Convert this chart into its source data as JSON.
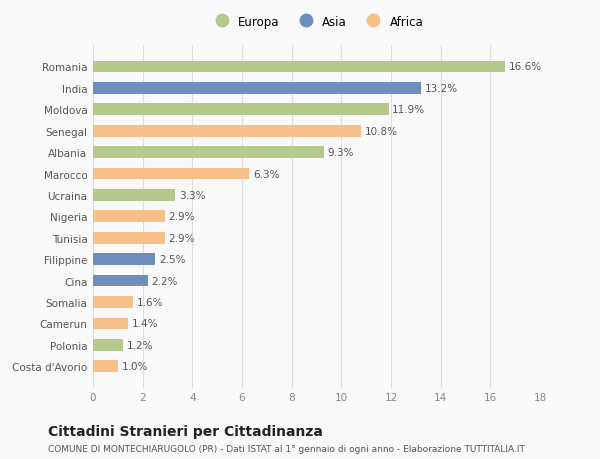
{
  "categories": [
    "Costa d'Avorio",
    "Polonia",
    "Camerun",
    "Somalia",
    "Cina",
    "Filippine",
    "Tunisia",
    "Nigeria",
    "Ucraina",
    "Marocco",
    "Albania",
    "Senegal",
    "Moldova",
    "India",
    "Romania"
  ],
  "values": [
    1.0,
    1.2,
    1.4,
    1.6,
    2.2,
    2.5,
    2.9,
    2.9,
    3.3,
    6.3,
    9.3,
    10.8,
    11.9,
    13.2,
    16.6
  ],
  "continents": [
    "Africa",
    "Europa",
    "Africa",
    "Africa",
    "Asia",
    "Asia",
    "Africa",
    "Africa",
    "Europa",
    "Africa",
    "Europa",
    "Africa",
    "Europa",
    "Asia",
    "Europa"
  ],
  "colors": {
    "Europa": "#b5c98e",
    "Asia": "#6e8fbe",
    "Africa": "#f5c08a"
  },
  "bar_height": 0.55,
  "xlim": [
    0,
    18
  ],
  "xticks": [
    0,
    2,
    4,
    6,
    8,
    10,
    12,
    14,
    16,
    18
  ],
  "title": "Cittadini Stranieri per Cittadinanza",
  "subtitle": "COMUNE DI MONTECHIARUGOLO (PR) - Dati ISTAT al 1° gennaio di ogni anno - Elaborazione TUTTITALIA.IT",
  "legend_labels": [
    "Europa",
    "Asia",
    "Africa"
  ],
  "legend_colors": [
    "#b5c98e",
    "#6e8fbe",
    "#f5c08a"
  ],
  "bg_color": "#f9f9f9",
  "grid_color": "#dddddd",
  "bar_label_fontsize": 7.5,
  "tick_fontsize": 7.5,
  "y_tick_fontsize": 7.5,
  "title_fontsize": 10,
  "subtitle_fontsize": 6.5,
  "legend_fontsize": 8.5
}
